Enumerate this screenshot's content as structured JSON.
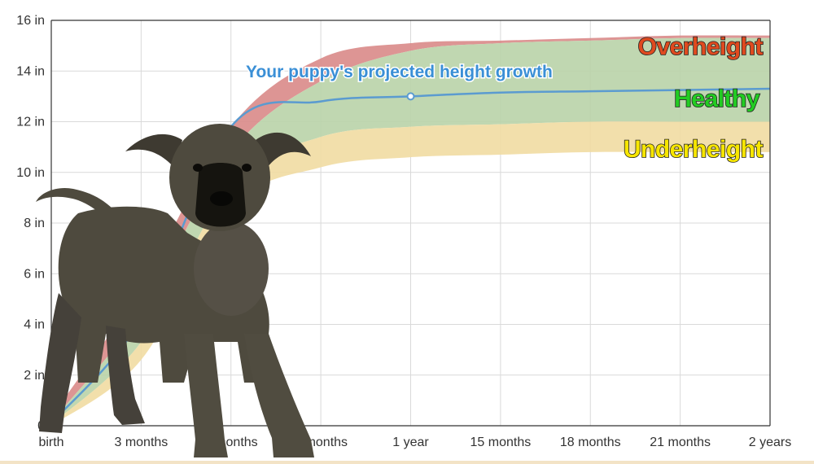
{
  "chart_data": {
    "type": "area",
    "x_tick_labels": [
      "birth",
      "3 months",
      "6 months",
      "9 months",
      "1 year",
      "15 months",
      "18 months",
      "21 months",
      "2 years"
    ],
    "x_months": [
      0,
      3,
      6,
      9,
      12,
      15,
      18,
      21,
      24
    ],
    "y_tick_labels": [
      "0",
      "2 in",
      "4 in",
      "6 in",
      "8 in",
      "10 in",
      "12 in",
      "14 in",
      "16 in"
    ],
    "ylim": [
      0,
      16
    ],
    "xlim": [
      0,
      24
    ],
    "grid": true,
    "bands": [
      {
        "name": "Overheight",
        "color": "#d98a88",
        "lower": [
          0.15,
          4.5,
          10.8,
          13.6,
          14.8,
          15.1,
          15.2,
          15.3,
          15.3
        ],
        "upper": [
          0.35,
          5.5,
          11.8,
          14.5,
          15.1,
          15.2,
          15.3,
          15.4,
          15.4
        ]
      },
      {
        "name": "Healthy",
        "color": "#b9d3a8",
        "lower": [
          0.05,
          3.3,
          9.5,
          11.4,
          11.8,
          11.9,
          12.0,
          12.0,
          12.0
        ],
        "upper": [
          0.15,
          4.5,
          10.8,
          13.6,
          14.8,
          15.1,
          15.2,
          15.3,
          15.3
        ]
      },
      {
        "name": "Underheight",
        "color": "#f1dca2",
        "lower": [
          0.0,
          2.6,
          8.6,
          10.2,
          10.6,
          10.7,
          10.8,
          10.8,
          10.8
        ],
        "upper": [
          0.05,
          3.3,
          9.5,
          11.4,
          11.8,
          11.9,
          12.0,
          12.0,
          12.0
        ]
      }
    ],
    "series": [
      {
        "values": [
          0.1,
          4.2,
          11.8,
          12.8,
          13.0,
          13.15,
          13.2,
          13.25,
          13.3
        ],
        "color": "#5b9bd0"
      }
    ],
    "highlight_point": {
      "x": 12,
      "y": 13.0
    },
    "band_labels": [
      {
        "text": "Overheight",
        "color": "#e04a1f"
      },
      {
        "text": "Healthy",
        "color": "#22cc22"
      },
      {
        "text": "Underheight",
        "color": "#f7e600"
      }
    ],
    "annotation": "Your puppy's projected height growth"
  },
  "photo": {
    "subject": "puppy",
    "fur_color": "#4e4a3e",
    "muzzle_color": "#15140f"
  }
}
